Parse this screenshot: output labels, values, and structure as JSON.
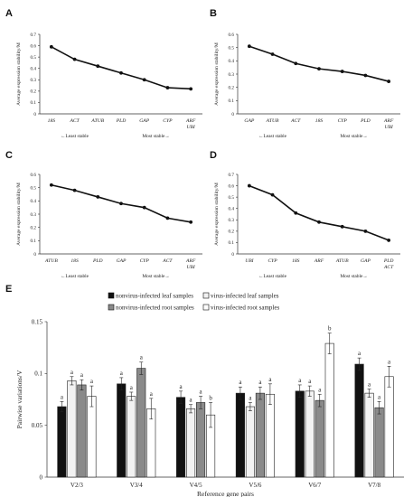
{
  "panels": [
    {
      "letter": "A",
      "chart_data": {
        "type": "line",
        "categories": [
          "18S",
          "ACT",
          "ATUB",
          "PLD",
          "GAP",
          "CYP",
          "ARF\nUBI"
        ],
        "values": [
          0.59,
          0.48,
          0.42,
          0.36,
          0.3,
          0.23,
          0.22
        ],
        "ylabel": "Average expression stability/M",
        "ylim": [
          0,
          0.7
        ],
        "yticks": [
          "0",
          "0.1",
          "0.2",
          "0.3",
          "0.4",
          "0.5",
          "0.6",
          "0.7"
        ],
        "least": "←Least stable",
        "most": "Most stable→",
        "grid": false
      }
    },
    {
      "letter": "B",
      "chart_data": {
        "type": "line",
        "categories": [
          "GAP",
          "ATUB",
          "ACT",
          "18S",
          "CYP",
          "PLD",
          "ARF\nUBI"
        ],
        "values": [
          0.51,
          0.45,
          0.38,
          0.34,
          0.32,
          0.29,
          0.245
        ],
        "ylabel": "Average expression stability/M",
        "ylim": [
          0,
          0.6
        ],
        "yticks": [
          "0",
          "0.1",
          "0.2",
          "0.3",
          "0.4",
          "0.5",
          "0.6"
        ],
        "least": "←Least stable",
        "most": "Most stable→",
        "grid": false
      }
    },
    {
      "letter": "C",
      "chart_data": {
        "type": "line",
        "categories": [
          "ATUB",
          "18S",
          "PLD",
          "GAP",
          "CYP",
          "ACT",
          "ARF\nUBI"
        ],
        "values": [
          0.52,
          0.48,
          0.43,
          0.38,
          0.35,
          0.27,
          0.24
        ],
        "ylabel": "Average expression stability/M",
        "ylim": [
          0,
          0.6
        ],
        "yticks": [
          "0",
          "0.1",
          "0.2",
          "0.3",
          "0.4",
          "0.5",
          "0.6"
        ],
        "least": "←Least stable",
        "most": "Most stable→",
        "grid": false
      }
    },
    {
      "letter": "D",
      "chart_data": {
        "type": "line",
        "categories": [
          "UBI",
          "CYP",
          "18S",
          "ARF",
          "ATUB",
          "GAP",
          "PLD\nACT"
        ],
        "values": [
          0.6,
          0.52,
          0.36,
          0.28,
          0.24,
          0.2,
          0.12
        ],
        "ylabel": "Average expression stability/M",
        "ylim": [
          0,
          0.7
        ],
        "yticks": [
          "0",
          "0.1",
          "0.2",
          "0.3",
          "0.4",
          "0.5",
          "0.6",
          "0.7"
        ],
        "least": "←Least stable",
        "most": "Most stable→",
        "grid": false
      }
    }
  ],
  "panelE": {
    "letter": "E",
    "chart_data": {
      "type": "bar",
      "categories": [
        "V2/3",
        "V3/4",
        "V4/5",
        "V5/6",
        "V6/7",
        "V7/8"
      ],
      "series": [
        {
          "name": "nonvirus-infected leaf samples",
          "color": "#111111",
          "values": [
            0.068,
            0.09,
            0.077,
            0.081,
            0.083,
            0.109
          ],
          "errors": [
            0.005,
            0.006,
            0.006,
            0.006,
            0.006,
            0.006
          ],
          "labels": [
            "a",
            "a",
            "a",
            "a",
            "a",
            "a"
          ]
        },
        {
          "name": "virus-infected leaf samples",
          "color": "#f2f2f2",
          "values": [
            0.093,
            0.078,
            0.066,
            0.068,
            0.083,
            0.081
          ],
          "errors": [
            0.004,
            0.004,
            0.004,
            0.004,
            0.005,
            0.004
          ],
          "labels": [
            "a",
            "a",
            "a",
            "a",
            "a",
            "a"
          ]
        },
        {
          "name": "nonvirus-infected root samples",
          "color": "#8a8a8a",
          "values": [
            0.089,
            0.105,
            0.072,
            0.081,
            0.074,
            0.067
          ],
          "errors": [
            0.005,
            0.006,
            0.006,
            0.006,
            0.006,
            0.006
          ],
          "labels": [
            "a",
            "a",
            "a",
            "a",
            "a",
            "a"
          ]
        },
        {
          "name": "virus-infected root samples",
          "color": "#ffffff",
          "values": [
            0.078,
            0.066,
            0.06,
            0.08,
            0.129,
            0.097
          ],
          "errors": [
            0.01,
            0.01,
            0.012,
            0.01,
            0.01,
            0.01
          ],
          "labels": [
            "a",
            "a",
            "b",
            "a",
            "b",
            "a"
          ]
        }
      ],
      "xlabel": "Reference gene pairs",
      "ylabel": "Pairwise variations/V",
      "ylim": [
        0,
        0.15
      ],
      "yticks": [
        "0",
        "0.05",
        "0.1",
        "0.15"
      ],
      "legend": "top",
      "grid": false
    }
  }
}
